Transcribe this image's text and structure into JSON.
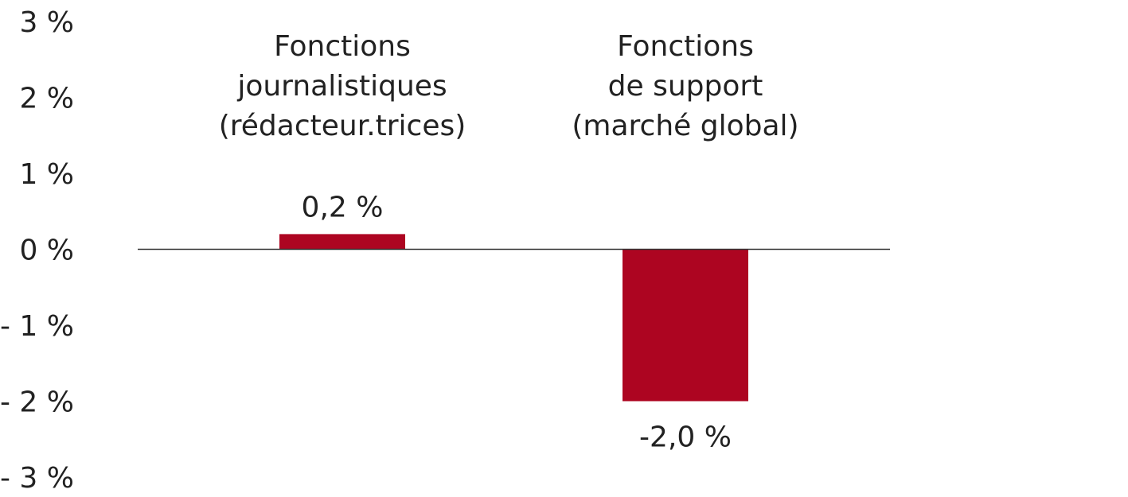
{
  "chart_data": {
    "type": "bar",
    "categories": [
      [
        "Fonctions",
        "journalistiques",
        "(rédacteur.trices)"
      ],
      [
        "Fonctions",
        "de support",
        "(marché global)"
      ]
    ],
    "values": [
      0.2,
      -2.0
    ],
    "value_labels": [
      "0,2 %",
      "-2,0 %"
    ],
    "ylim": [
      -3,
      3
    ],
    "yticks": [
      3,
      2,
      1,
      0,
      -1,
      -2,
      -3
    ],
    "ytick_labels": [
      "3 %",
      "2 %",
      "1 %",
      "0 %",
      "- 1 %",
      "- 2 %",
      "- 3 %"
    ],
    "grid": false,
    "colors": {
      "bar": "#ad0521",
      "axis": "#333333",
      "text": "#222222"
    }
  }
}
